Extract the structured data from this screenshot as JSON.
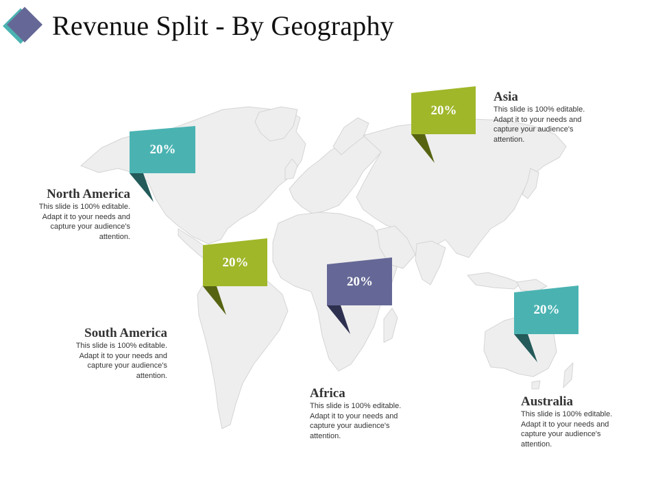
{
  "slide": {
    "title": "Revenue Split - By Geography"
  },
  "colors": {
    "teal": "#4ab3b2",
    "teal_dark": "#245a5a",
    "lime": "#a0b72a",
    "lime_dark": "#566412",
    "slate": "#656896",
    "slate_dark": "#2e3050",
    "map_land": "#eeeeee",
    "map_border": "#d4d4d4"
  },
  "regions": [
    {
      "id": "north-america",
      "name": "North America",
      "percent": "20%",
      "description": "This slide is 100% editable. Adapt it to your needs and capture your audience's attention.",
      "color": "#4ab3b2"
    },
    {
      "id": "south-america",
      "name": "South America",
      "percent": "20%",
      "description": "This slide is 100% editable. Adapt it to your needs and capture your audience's attention.",
      "color": "#a0b72a"
    },
    {
      "id": "africa",
      "name": "Africa",
      "percent": "20%",
      "description": "This slide is 100% editable. Adapt it to your needs and capture your audience's attention.",
      "color": "#656896"
    },
    {
      "id": "asia",
      "name": "Asia",
      "percent": "20%",
      "description": "This slide is 100% editable. Adapt it to your needs and capture your audience's attention.",
      "color": "#a0b72a"
    },
    {
      "id": "australia",
      "name": "Australia",
      "percent": "20%",
      "description": "This slide is 100% editable. Adapt it to your needs and capture your audience's attention.",
      "color": "#4ab3b2"
    }
  ]
}
